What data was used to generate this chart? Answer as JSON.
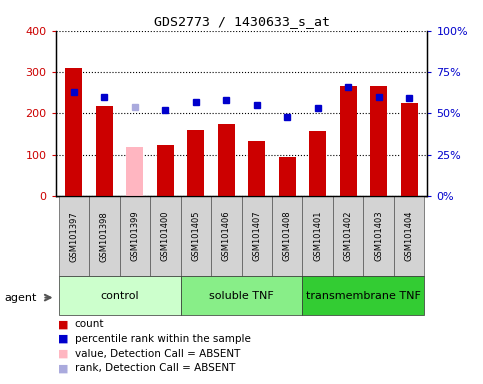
{
  "title": "GDS2773 / 1430633_s_at",
  "samples": [
    "GSM101397",
    "GSM101398",
    "GSM101399",
    "GSM101400",
    "GSM101405",
    "GSM101406",
    "GSM101407",
    "GSM101408",
    "GSM101401",
    "GSM101402",
    "GSM101403",
    "GSM101404"
  ],
  "counts": [
    310,
    218,
    118,
    122,
    160,
    175,
    133,
    93,
    157,
    265,
    265,
    225
  ],
  "percentile_ranks": [
    63,
    60,
    54,
    52,
    57,
    58,
    55,
    48,
    53,
    66,
    60,
    59
  ],
  "absent": [
    false,
    false,
    true,
    false,
    false,
    false,
    false,
    false,
    false,
    false,
    false,
    false
  ],
  "bar_color_normal": "#CC0000",
  "bar_color_absent": "#FFB6C1",
  "dot_color_normal": "#0000CC",
  "dot_color_absent": "#AAAADD",
  "ylim_left": [
    0,
    400
  ],
  "ylim_right": [
    0,
    100
  ],
  "yticks_left": [
    0,
    100,
    200,
    300,
    400
  ],
  "yticks_right": [
    0,
    25,
    50,
    75,
    100
  ],
  "groups": [
    {
      "label": "control",
      "indices": [
        0,
        1,
        2,
        3
      ],
      "color": "#CCFFCC"
    },
    {
      "label": "soluble TNF",
      "indices": [
        4,
        5,
        6,
        7
      ],
      "color": "#88EE88"
    },
    {
      "label": "transmembrane TNF",
      "indices": [
        8,
        9,
        10,
        11
      ],
      "color": "#33CC33"
    }
  ],
  "legend_items": [
    {
      "label": "count",
      "color": "#CC0000"
    },
    {
      "label": "percentile rank within the sample",
      "color": "#0000CC"
    },
    {
      "label": "value, Detection Call = ABSENT",
      "color": "#FFB6C1"
    },
    {
      "label": "rank, Detection Call = ABSENT",
      "color": "#AAAADD"
    }
  ],
  "tick_label_color_left": "#CC0000",
  "tick_label_color_right": "#0000CC",
  "bar_width": 0.55,
  "dot_size": 5
}
